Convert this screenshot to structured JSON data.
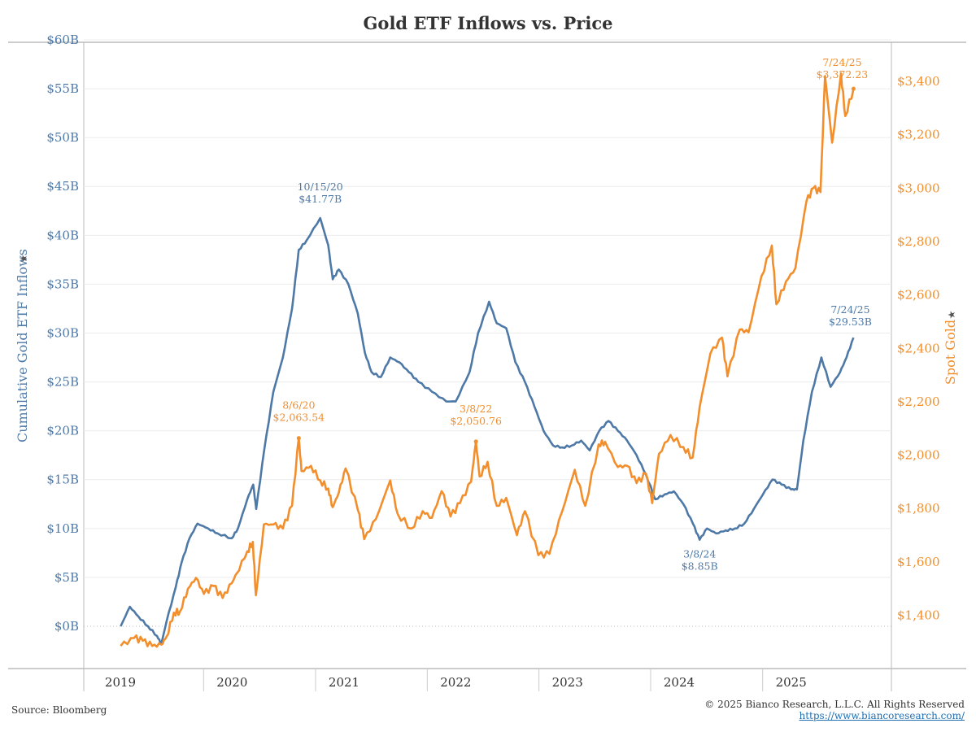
{
  "chart_data": {
    "type": "line",
    "title": "Gold ETF Inflows vs. Price",
    "x_axis": {
      "tick_labels": [
        "2019",
        "2020",
        "2021",
        "2022",
        "2023",
        "2024",
        "2025"
      ]
    },
    "y_left": {
      "label": "Cumulative Gold ETF Inflows",
      "range": [
        -4.5,
        60
      ],
      "ticks": [
        0,
        5,
        10,
        15,
        20,
        25,
        30,
        35,
        40,
        45,
        50,
        55,
        60
      ],
      "tick_labels": [
        "$0B",
        "$5B",
        "$10B",
        "$15B",
        "$20B",
        "$25B",
        "$30B",
        "$35B",
        "$40B",
        "$45B",
        "$50B",
        "$55B",
        "$60B"
      ],
      "color": "#4e79a7"
    },
    "y_right": {
      "label": "Spot Gold",
      "range": [
        1210,
        3520
      ],
      "ticks": [
        1400,
        1600,
        1800,
        2000,
        2200,
        2400,
        2600,
        2800,
        3000,
        3200,
        3400
      ],
      "tick_labels": [
        "$1,400",
        "$1,600",
        "$1,800",
        "$2,000",
        "$2,200",
        "$2,400",
        "$2,600",
        "$2,800",
        "$3,000",
        "$3,200",
        "$3,400"
      ],
      "color": "#f28e2b"
    },
    "grid": true,
    "series": [
      {
        "name": "Cumulative Gold ETF Inflows",
        "axis": "left",
        "color": "#4e79a7",
        "points": [
          [
            "2019-01-02",
            0.0
          ],
          [
            "2019-02-01",
            2.0
          ],
          [
            "2019-03-01",
            1.0
          ],
          [
            "2019-04-01",
            0.0
          ],
          [
            "2019-05-01",
            -1.0
          ],
          [
            "2019-05-15",
            -1.8
          ],
          [
            "2019-06-01",
            0.5
          ],
          [
            "2019-07-01",
            4.0
          ],
          [
            "2019-07-20",
            6.5
          ],
          [
            "2019-08-15",
            9.0
          ],
          [
            "2019-09-10",
            10.5
          ],
          [
            "2019-10-15",
            10.0
          ],
          [
            "2019-11-15",
            9.5
          ],
          [
            "2019-12-31",
            9.0
          ],
          [
            "2020-01-20",
            10.0
          ],
          [
            "2020-02-20",
            13.0
          ],
          [
            "2020-03-10",
            14.5
          ],
          [
            "2020-03-20",
            12.0
          ],
          [
            "2020-04-15",
            18.0
          ],
          [
            "2020-05-15",
            24.0
          ],
          [
            "2020-06-15",
            27.5
          ],
          [
            "2020-07-15",
            32.5
          ],
          [
            "2020-08-06",
            38.5
          ],
          [
            "2020-09-01",
            39.5
          ],
          [
            "2020-10-15",
            41.77
          ],
          [
            "2020-11-10",
            39.0
          ],
          [
            "2020-11-25",
            35.5
          ],
          [
            "2020-12-15",
            36.5
          ],
          [
            "2021-01-15",
            35.0
          ],
          [
            "2021-02-15",
            32.0
          ],
          [
            "2021-03-10",
            28.0
          ],
          [
            "2021-04-01",
            26.0
          ],
          [
            "2021-05-01",
            25.5
          ],
          [
            "2021-06-01",
            27.5
          ],
          [
            "2021-07-01",
            27.0
          ],
          [
            "2021-08-01",
            26.0
          ],
          [
            "2021-09-01",
            25.0
          ],
          [
            "2021-10-15",
            24.0
          ],
          [
            "2021-12-01",
            23.0
          ],
          [
            "2022-01-01",
            23.0
          ],
          [
            "2022-02-15",
            26.0
          ],
          [
            "2022-03-15",
            30.0
          ],
          [
            "2022-04-20",
            33.2
          ],
          [
            "2022-05-15",
            31.0
          ],
          [
            "2022-06-15",
            30.5
          ],
          [
            "2022-07-15",
            27.0
          ],
          [
            "2022-08-15",
            25.0
          ],
          [
            "2022-09-15",
            22.5
          ],
          [
            "2022-10-15",
            20.0
          ],
          [
            "2022-11-15",
            18.5
          ],
          [
            "2022-12-15",
            18.3
          ],
          [
            "2023-01-15",
            18.5
          ],
          [
            "2023-02-15",
            19.0
          ],
          [
            "2023-03-15",
            18.0
          ],
          [
            "2023-04-15",
            20.0
          ],
          [
            "2023-05-15",
            21.0
          ],
          [
            "2023-06-15",
            20.0
          ],
          [
            "2023-07-15",
            19.0
          ],
          [
            "2023-08-15",
            17.5
          ],
          [
            "2023-09-15",
            15.5
          ],
          [
            "2023-10-15",
            13.0
          ],
          [
            "2023-11-15",
            13.5
          ],
          [
            "2023-12-15",
            13.8
          ],
          [
            "2024-01-15",
            12.5
          ],
          [
            "2024-02-15",
            10.5
          ],
          [
            "2024-03-08",
            8.85
          ],
          [
            "2024-04-01",
            10.0
          ],
          [
            "2024-05-01",
            9.5
          ],
          [
            "2024-06-01",
            9.8
          ],
          [
            "2024-07-01",
            10.0
          ],
          [
            "2024-08-01",
            10.5
          ],
          [
            "2024-09-01",
            12.0
          ],
          [
            "2024-10-01",
            13.5
          ],
          [
            "2024-11-01",
            15.0
          ],
          [
            "2024-12-01",
            14.5
          ],
          [
            "2025-01-01",
            14.0
          ],
          [
            "2025-01-20",
            14.0
          ],
          [
            "2025-02-10",
            19.0
          ],
          [
            "2025-03-10",
            24.0
          ],
          [
            "2025-04-10",
            27.5
          ],
          [
            "2025-05-10",
            24.5
          ],
          [
            "2025-06-10",
            26.0
          ],
          [
            "2025-07-01",
            27.5
          ],
          [
            "2025-07-24",
            29.53
          ]
        ]
      },
      {
        "name": "Spot Gold",
        "axis": "right",
        "color": "#f28e2b",
        "points": [
          [
            "2019-01-02",
            1285
          ],
          [
            "2019-02-15",
            1315
          ],
          [
            "2019-03-15",
            1305
          ],
          [
            "2019-04-15",
            1285
          ],
          [
            "2019-05-15",
            1290
          ],
          [
            "2019-06-01",
            1320
          ],
          [
            "2019-06-25",
            1410
          ],
          [
            "2019-07-15",
            1415
          ],
          [
            "2019-08-10",
            1500
          ],
          [
            "2019-09-05",
            1540
          ],
          [
            "2019-10-01",
            1480
          ],
          [
            "2019-11-01",
            1510
          ],
          [
            "2019-12-01",
            1465
          ],
          [
            "2019-12-31",
            1520
          ],
          [
            "2020-01-15",
            1555
          ],
          [
            "2020-02-20",
            1640
          ],
          [
            "2020-03-09",
            1675
          ],
          [
            "2020-03-19",
            1475
          ],
          [
            "2020-04-14",
            1740
          ],
          [
            "2020-05-15",
            1740
          ],
          [
            "2020-06-15",
            1725
          ],
          [
            "2020-07-15",
            1810
          ],
          [
            "2020-08-06",
            2063.54
          ],
          [
            "2020-08-15",
            1940
          ],
          [
            "2020-09-15",
            1960
          ],
          [
            "2020-10-15",
            1905
          ],
          [
            "2020-11-10",
            1875
          ],
          [
            "2020-11-25",
            1805
          ],
          [
            "2020-12-15",
            1860
          ],
          [
            "2021-01-06",
            1950
          ],
          [
            "2021-02-15",
            1795
          ],
          [
            "2021-03-08",
            1685
          ],
          [
            "2021-04-15",
            1760
          ],
          [
            "2021-06-01",
            1905
          ],
          [
            "2021-06-25",
            1780
          ],
          [
            "2021-08-09",
            1725
          ],
          [
            "2021-09-15",
            1790
          ],
          [
            "2021-10-15",
            1765
          ],
          [
            "2021-11-16",
            1865
          ],
          [
            "2021-12-15",
            1770
          ],
          [
            "2022-01-15",
            1820
          ],
          [
            "2022-02-20",
            1900
          ],
          [
            "2022-03-08",
            2050.76
          ],
          [
            "2022-03-20",
            1920
          ],
          [
            "2022-04-15",
            1975
          ],
          [
            "2022-05-15",
            1810
          ],
          [
            "2022-06-15",
            1840
          ],
          [
            "2022-07-20",
            1700
          ],
          [
            "2022-08-15",
            1790
          ],
          [
            "2022-09-28",
            1625
          ],
          [
            "2022-11-03",
            1630
          ],
          [
            "2022-12-15",
            1790
          ],
          [
            "2023-01-25",
            1945
          ],
          [
            "2023-02-28",
            1810
          ],
          [
            "2023-04-13",
            2040
          ],
          [
            "2023-05-04",
            2050
          ],
          [
            "2023-06-15",
            1955
          ],
          [
            "2023-07-15",
            1960
          ],
          [
            "2023-08-15",
            1895
          ],
          [
            "2023-09-15",
            1930
          ],
          [
            "2023-10-05",
            1820
          ],
          [
            "2023-10-27",
            2005
          ],
          [
            "2023-12-04",
            2075
          ],
          [
            "2024-01-15",
            2030
          ],
          [
            "2024-02-14",
            1990
          ],
          [
            "2024-03-08",
            2180
          ],
          [
            "2024-04-12",
            2380
          ],
          [
            "2024-05-20",
            2440
          ],
          [
            "2024-06-07",
            2295
          ],
          [
            "2024-07-17",
            2470
          ],
          [
            "2024-08-15",
            2460
          ],
          [
            "2024-09-26",
            2670
          ],
          [
            "2024-10-30",
            2785
          ],
          [
            "2024-11-14",
            2565
          ],
          [
            "2024-12-15",
            2650
          ],
          [
            "2025-01-15",
            2700
          ],
          [
            "2025-02-20",
            2950
          ],
          [
            "2025-03-15",
            3000
          ],
          [
            "2025-04-07",
            2985
          ],
          [
            "2025-04-22",
            3420
          ],
          [
            "2025-05-15",
            3170
          ],
          [
            "2025-06-13",
            3430
          ],
          [
            "2025-06-27",
            3270
          ],
          [
            "2025-07-24",
            3372.23
          ]
        ]
      }
    ],
    "annotations": [
      {
        "series": "Cumulative Gold ETF Inflows",
        "date_label": "10/15/20",
        "value_label": "$41.77B",
        "x": "2020-10-15",
        "y": 41.77
      },
      {
        "series": "Cumulative Gold ETF Inflows",
        "date_label": "3/8/24",
        "value_label": "$8.85B",
        "x": "2024-03-08",
        "y": 8.85
      },
      {
        "series": "Cumulative Gold ETF Inflows",
        "date_label": "7/24/25",
        "value_label": "$29.53B",
        "x": "2025-07-24",
        "y": 29.53
      },
      {
        "series": "Spot Gold",
        "date_label": "8/6/20",
        "value_label": "$2,063.54",
        "x": "2020-08-06",
        "y": 2063.54
      },
      {
        "series": "Spot Gold",
        "date_label": "3/8/22",
        "value_label": "$2,050.76",
        "x": "2022-03-08",
        "y": 2050.76
      },
      {
        "series": "Spot Gold",
        "date_label": "7/24/25",
        "value_label": "$3,372.23",
        "x": "2025-07-24",
        "y": 3372.23
      }
    ]
  },
  "footer": {
    "source": "Source: Bloomberg",
    "copyright": "© 2025 Bianco Research, L.L.C. All Rights Reserved",
    "url": "https://www.biancoresearch.com/"
  }
}
